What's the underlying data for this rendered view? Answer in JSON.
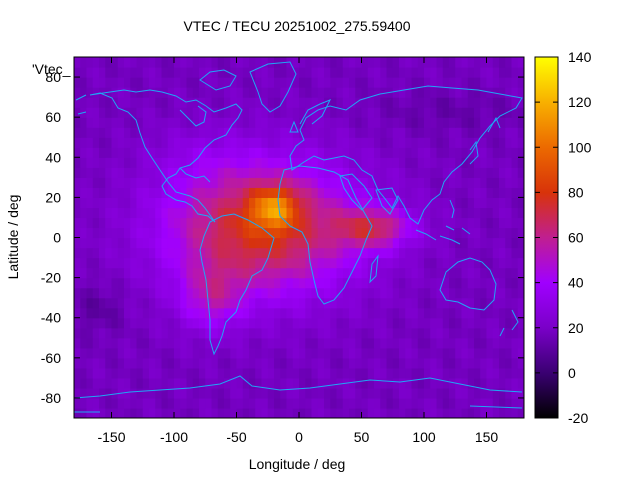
{
  "chart_data": {
    "type": "heatmap",
    "title": "VTEC / TECU 20251002_275.59400",
    "xlabel": "Longitude / deg",
    "ylabel": "Latitude / deg",
    "legend_label": "'Vtec_",
    "xlim": [
      -180,
      180
    ],
    "ylim": [
      -90,
      90
    ],
    "xticks": [
      -150,
      -100,
      -50,
      0,
      50,
      100,
      150
    ],
    "yticks": [
      -80,
      -60,
      -40,
      -20,
      0,
      20,
      40,
      60,
      80
    ],
    "colorbar": {
      "min": -20,
      "max": 140,
      "ticks": [
        -20,
        0,
        20,
        40,
        60,
        80,
        100,
        120,
        140
      ],
      "palette": [
        "#000000",
        "#3a0072",
        "#7a00c8",
        "#a000ff",
        "#c01f90",
        "#d8330a",
        "#ec6a00",
        "#f8b000",
        "#ffff00"
      ]
    },
    "grid": false,
    "coastline_color": "#1fa7f5",
    "notes": "Background value about 18 TECU; equatorial anomaly maximum about 120 TECU near 20W 10N over West Africa / South Atlantic, extending over South America down to about 55S and east to 100E."
  }
}
